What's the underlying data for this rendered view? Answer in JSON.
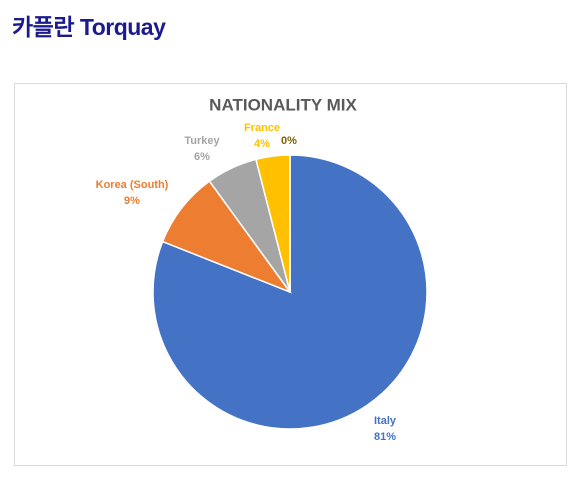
{
  "header": {
    "title": "카플란 Torquay"
  },
  "chart_data": {
    "type": "pie",
    "title": "NATIONALITY MIX",
    "categories": [
      "Italy",
      "Korea (South)",
      "Turkey",
      "France",
      null
    ],
    "values": [
      81,
      9,
      6,
      4,
      0
    ],
    "value_labels": [
      "81%",
      "9%",
      "6%",
      "4%",
      "0%"
    ],
    "colors": [
      "#4472c4",
      "#ed7d31",
      "#a5a5a5",
      "#ffc000",
      "#7f6000"
    ]
  }
}
